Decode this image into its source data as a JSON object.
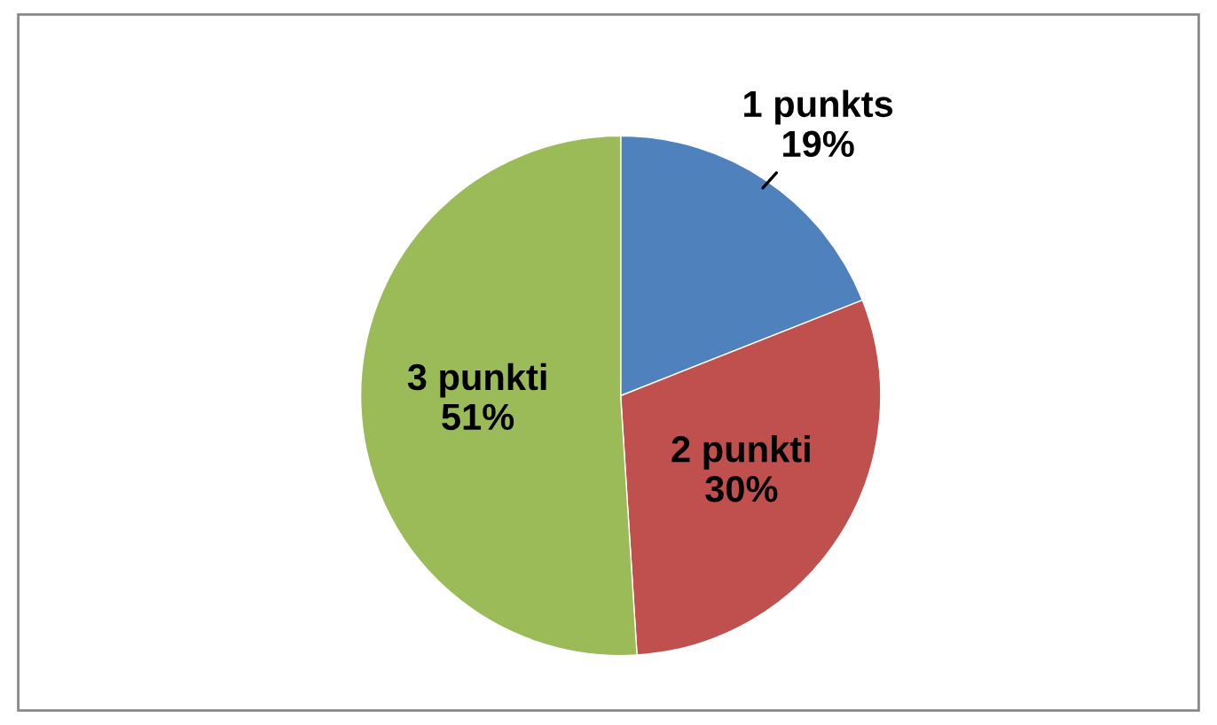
{
  "chart_data": {
    "type": "pie",
    "categories": [
      "1 punkts",
      "2 punkti",
      "3 punkti"
    ],
    "values": [
      19,
      30,
      51
    ],
    "colors": [
      "#4f81bd",
      "#c0504d",
      "#9bbb59"
    ],
    "value_labels": [
      "19%",
      "30%",
      "51%"
    ],
    "legend": false
  }
}
